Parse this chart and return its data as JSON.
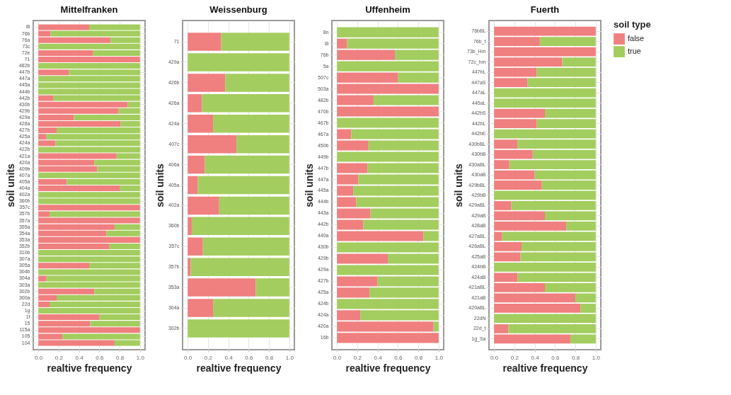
{
  "chart_data": [
    {
      "type": "bar",
      "orientation": "horizontal",
      "stacked": true,
      "title": "Mittelfranken",
      "xlabel": "realtive frequency",
      "ylabel": "soil units",
      "grid": true,
      "legend": false,
      "xlim": [
        -0.05,
        1.05
      ],
      "xticks": [
        {
          "value": 0,
          "label": "0.0"
        },
        {
          "value": 0.2,
          "label": "0.2"
        },
        {
          "value": 0.4,
          "label": "0.4"
        },
        {
          "value": 0.6,
          "label": "0.6"
        },
        {
          "value": 0.8,
          "label": "0.8"
        },
        {
          "value": 1,
          "label": "1.0"
        }
      ],
      "categories": [
        "8i",
        "76b",
        "76a",
        "73c",
        "72e",
        "71",
        "482b",
        "447b",
        "447a",
        "445a",
        "444b",
        "442b",
        "430b",
        "429b",
        "429a",
        "428a",
        "427b",
        "425a",
        "424a",
        "422b",
        "421a",
        "420a",
        "409b",
        "407a",
        "405a",
        "404a",
        "402a",
        "360b",
        "357c",
        "357b",
        "357a",
        "355a",
        "354a",
        "353a",
        "352b",
        "310b",
        "307a",
        "305a",
        "304b",
        "304a",
        "303a",
        "302b",
        "300a",
        "22d",
        "1g",
        "1f",
        "15",
        "115a",
        "105",
        "104"
      ],
      "series": [
        {
          "color": "#f07f7f",
          "values": [
            0.5,
            0.12,
            0.71,
            0,
            0.54,
            1,
            0,
            0.3,
            0,
            0,
            0,
            0.15,
            0.88,
            0.79,
            0.35,
            0.81,
            0.18,
            0.08,
            0.17,
            0,
            0.77,
            0.55,
            0.58,
            0,
            0.28,
            0.8,
            0,
            0,
            1,
            0.11,
            1,
            0.75,
            0.67,
            1,
            0.7,
            0,
            0,
            0.5,
            0,
            0.08,
            0,
            0.55,
            0.18,
            0.11,
            0,
            0.6,
            0.51,
            1,
            0.24,
            0.75
          ]
        },
        {
          "color": "#a3cd5e",
          "values": [
            0.5,
            0.88,
            0.29,
            1,
            0.46,
            0,
            1,
            0.7,
            1,
            1,
            1,
            0.85,
            0.12,
            0.21,
            0.65,
            0.19,
            0.82,
            0.92,
            0.83,
            1,
            0.23,
            0.45,
            0.42,
            1,
            0.72,
            0.2,
            1,
            1,
            0,
            0.89,
            0,
            0.25,
            0.33,
            0,
            0.3,
            1,
            1,
            0.5,
            1,
            0.92,
            1,
            0.45,
            0.82,
            0.89,
            1,
            0.4,
            0.49,
            0,
            0.76,
            0.25
          ]
        }
      ]
    },
    {
      "type": "bar",
      "orientation": "horizontal",
      "stacked": true,
      "title": "Weissenburg",
      "xlabel": "realtive frequency",
      "ylabel": "soil units",
      "grid": true,
      "legend": false,
      "xlim": [
        -0.05,
        1.05
      ],
      "xticks": [
        {
          "value": 0,
          "label": "0.0"
        },
        {
          "value": 0.2,
          "label": "0.2"
        },
        {
          "value": 0.4,
          "label": "0.4"
        },
        {
          "value": 0.6,
          "label": "0.6"
        },
        {
          "value": 0.8,
          "label": "0.8"
        },
        {
          "value": 1,
          "label": "1.0"
        }
      ],
      "categories": [
        "71",
        "429a",
        "426b",
        "426a",
        "424a",
        "407c",
        "406a",
        "405a",
        "402a",
        "360b",
        "357c",
        "357b",
        "353a",
        "304a",
        "302b"
      ],
      "series": [
        {
          "color": "#f07f7f",
          "values": [
            0.33,
            0,
            0.37,
            0.14,
            0.25,
            0.48,
            0.17,
            0.1,
            0.31,
            0.04,
            0.15,
            0.03,
            0.67,
            0.25,
            0
          ]
        },
        {
          "color": "#a3cd5e",
          "values": [
            0.67,
            1,
            0.63,
            0.86,
            0.75,
            0.52,
            0.83,
            0.9,
            0.69,
            0.96,
            0.85,
            0.97,
            0.33,
            0.75,
            1
          ]
        }
      ]
    },
    {
      "type": "bar",
      "orientation": "horizontal",
      "stacked": true,
      "title": "Uffenheim",
      "xlabel": "realtive frequency",
      "ylabel": "soil units",
      "grid": true,
      "legend": false,
      "xlim": [
        -0.05,
        1.05
      ],
      "xticks": [
        {
          "value": 0,
          "label": "0.0"
        },
        {
          "value": 0.2,
          "label": "0.2"
        },
        {
          "value": 0.4,
          "label": "0.4"
        },
        {
          "value": 0.6,
          "label": "0.6"
        },
        {
          "value": 0.8,
          "label": "0.8"
        },
        {
          "value": 1,
          "label": "1.0"
        }
      ],
      "categories": [
        "8n",
        "8i",
        "76b",
        "5a",
        "507c",
        "503a",
        "482b",
        "470b",
        "467b",
        "467a",
        "450b",
        "449b",
        "447b",
        "447a",
        "445a",
        "444b",
        "443a",
        "442b",
        "440a",
        "430b",
        "429b",
        "429a",
        "427b",
        "425a",
        "424b",
        "424a",
        "420a",
        "16b"
      ],
      "series": [
        {
          "color": "#f07f7f",
          "values": [
            0,
            0.1,
            0.57,
            0,
            0.6,
            1,
            0.36,
            1,
            0,
            0.14,
            0.31,
            0,
            0.3,
            0.21,
            0.16,
            0.19,
            0.33,
            0.26,
            0.85,
            0,
            0.5,
            0,
            0.4,
            0.32,
            0,
            0.23,
            0.95,
            1
          ]
        },
        {
          "color": "#a3cd5e",
          "values": [
            1,
            0.9,
            0.43,
            1,
            0.4,
            0,
            0.64,
            0,
            1,
            0.86,
            0.69,
            1,
            0.7,
            0.79,
            0.84,
            0.81,
            0.67,
            0.74,
            0.15,
            1,
            0.5,
            1,
            0.6,
            0.68,
            1,
            0.77,
            0.05,
            0
          ]
        }
      ]
    },
    {
      "type": "bar",
      "orientation": "horizontal",
      "stacked": true,
      "title": "Fuerth",
      "xlabel": "realtive frequency",
      "ylabel": "soil units",
      "grid": true,
      "legend": "right",
      "legend_title": "soil type",
      "xlim": [
        -0.05,
        1.05
      ],
      "xticks": [
        {
          "value": 0,
          "label": "0.0"
        },
        {
          "value": 0.2,
          "label": "0.2"
        },
        {
          "value": 0.4,
          "label": "0.4"
        },
        {
          "value": 0.6,
          "label": "0.6"
        },
        {
          "value": 0.8,
          "label": "0.8"
        },
        {
          "value": 1,
          "label": "1.0"
        }
      ],
      "categories": [
        "76bBL",
        "76b_f",
        "73b_Hm",
        "72c_hm",
        "447bL",
        "447aS",
        "447aL",
        "445aL",
        "442bS",
        "442bL",
        "442bE",
        "430bBL",
        "430bB",
        "430aBL",
        "430aB",
        "429bBL",
        "429bB",
        "429aBL",
        "429aB",
        "428aB",
        "427aBL",
        "426aBL",
        "425aB",
        "424bB",
        "424aB",
        "421aBL",
        "421aB",
        "420aBL",
        "22dN",
        "22d_t",
        "1g_Sa"
      ],
      "series": [
        {
          "name": "false",
          "color": "#f07f7f",
          "values": [
            1,
            0.45,
            1,
            0.67,
            0.42,
            0.33,
            0,
            0,
            0.5,
            0.42,
            0,
            0.23,
            0.38,
            0.15,
            0.4,
            0.47,
            0,
            0.17,
            0.5,
            0.71,
            0.08,
            0.27,
            0.26,
            0,
            0.23,
            0.5,
            0.8,
            0.85,
            0,
            0.14,
            0.75
          ]
        },
        {
          "name": "true",
          "color": "#a3cd5e",
          "values": [
            0,
            0.55,
            0,
            0.33,
            0.58,
            0.67,
            1,
            1,
            0.5,
            0.58,
            1,
            0.77,
            0.62,
            0.85,
            0.6,
            0.53,
            1,
            0.83,
            0.5,
            0.29,
            0.92,
            0.73,
            0.74,
            1,
            0.77,
            0.5,
            0.2,
            0.15,
            1,
            0.86,
            0.25
          ]
        }
      ]
    }
  ]
}
